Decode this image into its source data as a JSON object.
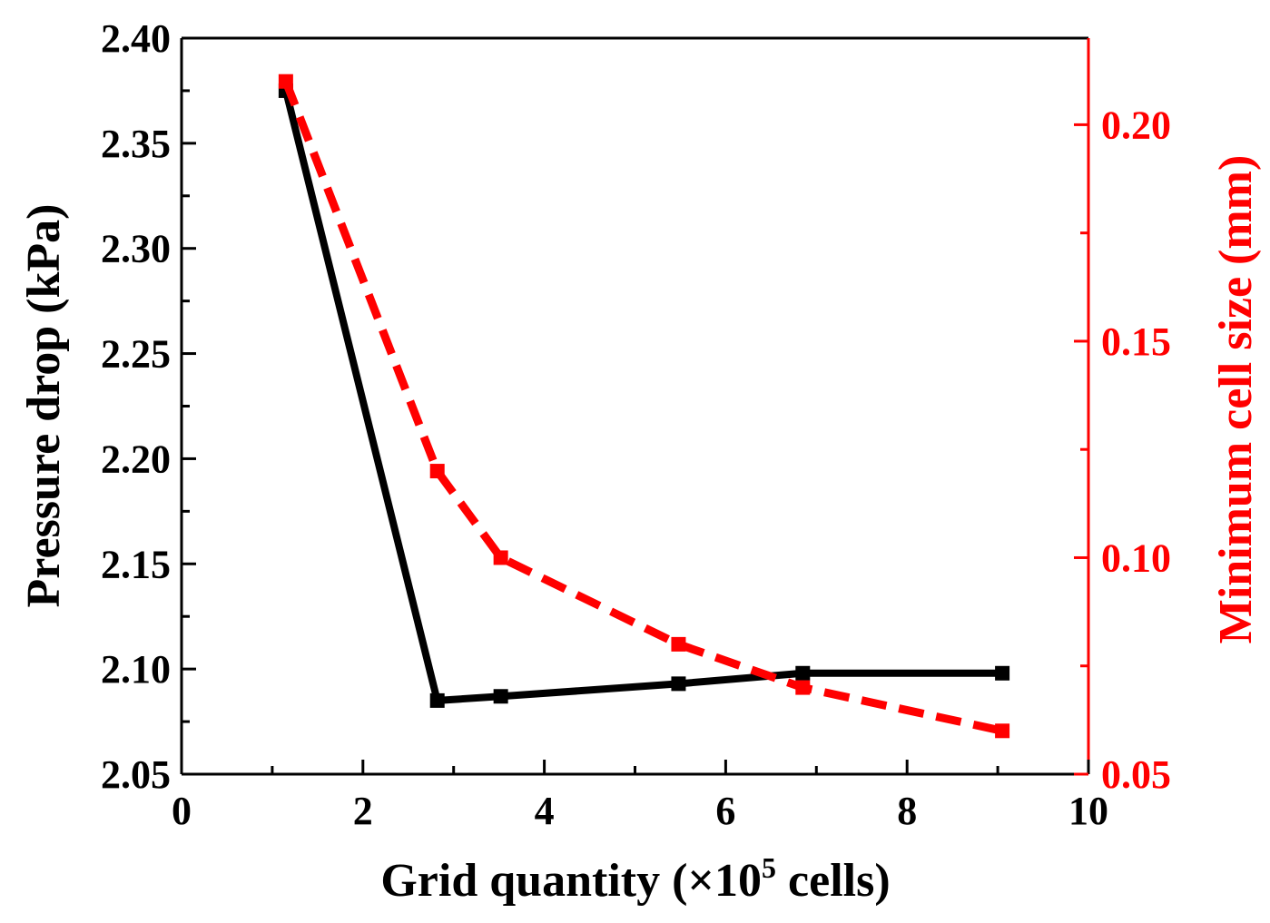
{
  "chart_data": {
    "type": "line",
    "title": "",
    "xlabel": "Grid quantity (×10",
    "xlabel_sup": "5",
    "xlabel_tail": " cells)",
    "ylabel_left": "Pressure drop (kPa)",
    "ylabel_right": "Minimum cell size (mm)",
    "xlim": [
      0,
      10
    ],
    "ylim_left": [
      2.05,
      2.4
    ],
    "ylim_right": [
      0.05,
      0.22
    ],
    "x_ticks": [
      "0",
      "2",
      "4",
      "6",
      "8",
      "10"
    ],
    "y_left_ticks": [
      "2.05",
      "2.10",
      "2.15",
      "2.20",
      "2.25",
      "2.30",
      "2.35",
      "2.40"
    ],
    "y_right_ticks": [
      "0.05",
      "0.10",
      "0.15",
      "0.20"
    ],
    "grid": false,
    "colors": {
      "pressure": "#000000",
      "cell_size": "#ff0000",
      "left_axis": "#000000",
      "right_axis": "#ff0000"
    },
    "series": [
      {
        "name": "Pressure drop",
        "axis": "left",
        "style": "solid",
        "marker": "square",
        "x": [
          1.15,
          2.82,
          3.52,
          5.48,
          6.85,
          9.05
        ],
        "values": [
          2.375,
          2.085,
          2.087,
          2.093,
          2.098,
          2.098
        ]
      },
      {
        "name": "Minimum cell size",
        "axis": "right",
        "style": "dashed",
        "marker": "square",
        "x": [
          1.15,
          2.82,
          3.52,
          5.48,
          6.85,
          9.05
        ],
        "values": [
          0.21,
          0.12,
          0.1,
          0.08,
          0.07,
          0.06
        ]
      }
    ]
  }
}
